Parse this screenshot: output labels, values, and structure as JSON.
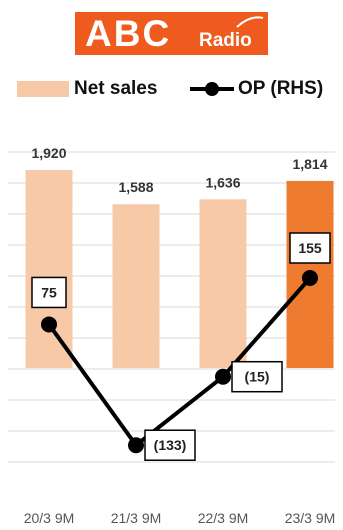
{
  "logo": {
    "main": "ABC",
    "sub": "Radio"
  },
  "colors": {
    "bar": "#f8c9a6",
    "bar_highlight": "#ee7b30",
    "line": "#000000",
    "grid": "#d9d9d9",
    "brand": "#ef5b1e"
  },
  "legend": {
    "bar_label": "Net sales",
    "line_label": "OP (RHS)"
  },
  "chart_data": {
    "type": "bar",
    "categories": [
      "20/3 9M",
      "21/3 9M",
      "22/3 9M",
      "23/3 9M"
    ],
    "series": [
      {
        "name": "Net sales",
        "type": "bar",
        "values": [
          1920,
          1588,
          1636,
          1814
        ],
        "labels": [
          "1,920",
          "1,588",
          "1,636",
          "1,814"
        ],
        "highlight_index": 3
      },
      {
        "name": "OP (RHS)",
        "type": "line",
        "values": [
          75,
          -133,
          -15,
          155
        ],
        "labels": [
          "75",
          "(133)",
          "(15)",
          "155"
        ]
      }
    ],
    "grid": true,
    "legend_position": "top"
  }
}
